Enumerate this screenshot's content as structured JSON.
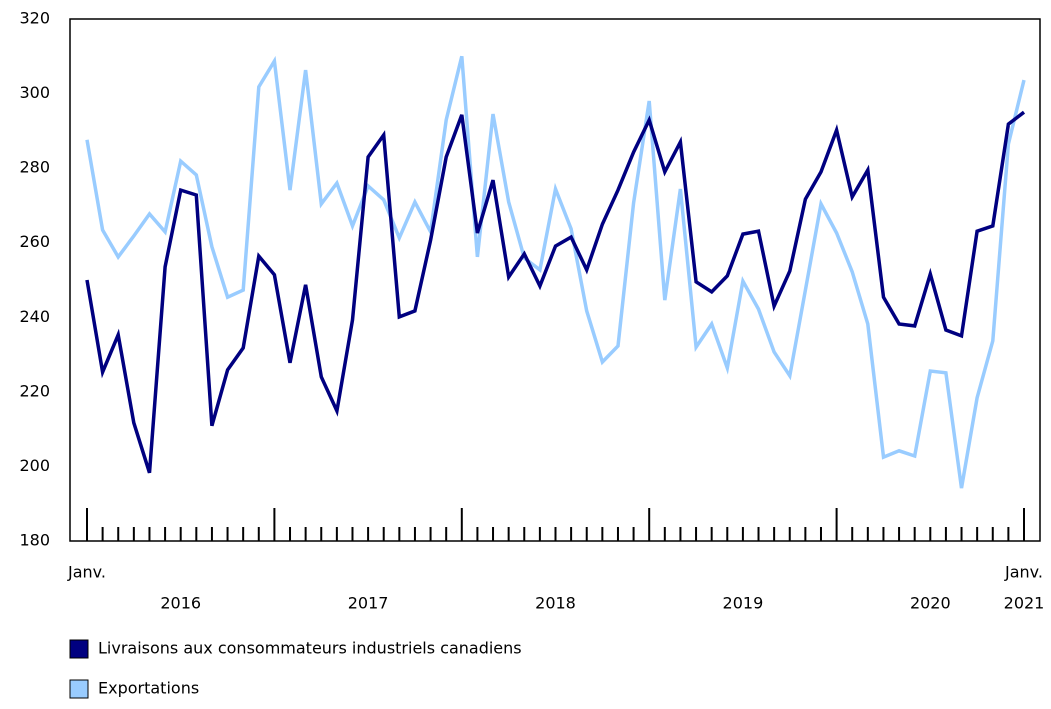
{
  "chart_data": {
    "type": "line",
    "categories": [
      "Janv.",
      null,
      null,
      null,
      null,
      null,
      null,
      null,
      null,
      null,
      null,
      null,
      null,
      null,
      null,
      null,
      null,
      null,
      null,
      null,
      null,
      null,
      null,
      null,
      null,
      null,
      null,
      null,
      null,
      null,
      null,
      null,
      null,
      null,
      null,
      null,
      null,
      null,
      null,
      null,
      null,
      null,
      null,
      null,
      null,
      null,
      null,
      null,
      null,
      null,
      null,
      null,
      null,
      null,
      null,
      null,
      null,
      null,
      null,
      null,
      "Janv."
    ],
    "year_labels": [
      "2016",
      "2017",
      "2018",
      "2019",
      "2020",
      "2021"
    ],
    "series": [
      {
        "name": "Livraisons aux consommateurs industriels canadiens",
        "color": "#000080",
        "values": [
          250,
          225.3,
          235.3,
          211.7,
          198.3,
          253.5,
          274.1,
          272.8,
          210.9,
          225.9,
          231.8,
          256.4,
          251.4,
          227.8,
          248.7,
          224,
          214.9,
          239.3,
          283,
          288.9,
          240.1,
          241.7,
          260.7,
          283,
          294.3,
          262.6,
          276.8,
          250.8,
          257,
          248.4,
          259.1,
          261.5,
          252.7,
          265,
          274.1,
          284.3,
          292.9,
          279,
          287,
          249.5,
          246.8,
          251.1,
          262.3,
          263.1,
          243,
          252.4,
          271.7,
          279,
          290.2,
          272.3,
          279.5,
          245.4,
          238.2,
          237.7,
          251.6,
          236.6,
          235,
          263.1,
          264.5,
          291.8,
          295
        ]
      },
      {
        "name": "Exportations",
        "color": "#99ccff",
        "values": [
          287.6,
          263.4,
          256.2,
          261.8,
          267.7,
          262.9,
          281.9,
          278.2,
          258.9,
          245.4,
          247.3,
          301.8,
          308.7,
          274.1,
          306.3,
          270.4,
          276,
          264.5,
          275.2,
          271.5,
          261.3,
          270.9,
          262.9,
          292.9,
          310,
          256.2,
          294.5,
          270.9,
          255.9,
          252.7,
          274.4,
          263.7,
          241.7,
          228,
          232.3,
          270.7,
          298,
          244.6,
          274.4,
          232,
          238.2,
          226.4,
          249.7,
          242.2,
          230.7,
          224.3,
          247.3,
          270.4,
          262.6,
          252.2,
          238.2,
          202.5,
          204.2,
          202.8,
          225.6,
          225.1,
          194.2,
          218.4,
          233.7,
          286.5,
          303.6
        ]
      }
    ],
    "ylim": [
      180,
      320
    ],
    "yticks": [
      180,
      200,
      220,
      240,
      260,
      280,
      300,
      320
    ]
  }
}
